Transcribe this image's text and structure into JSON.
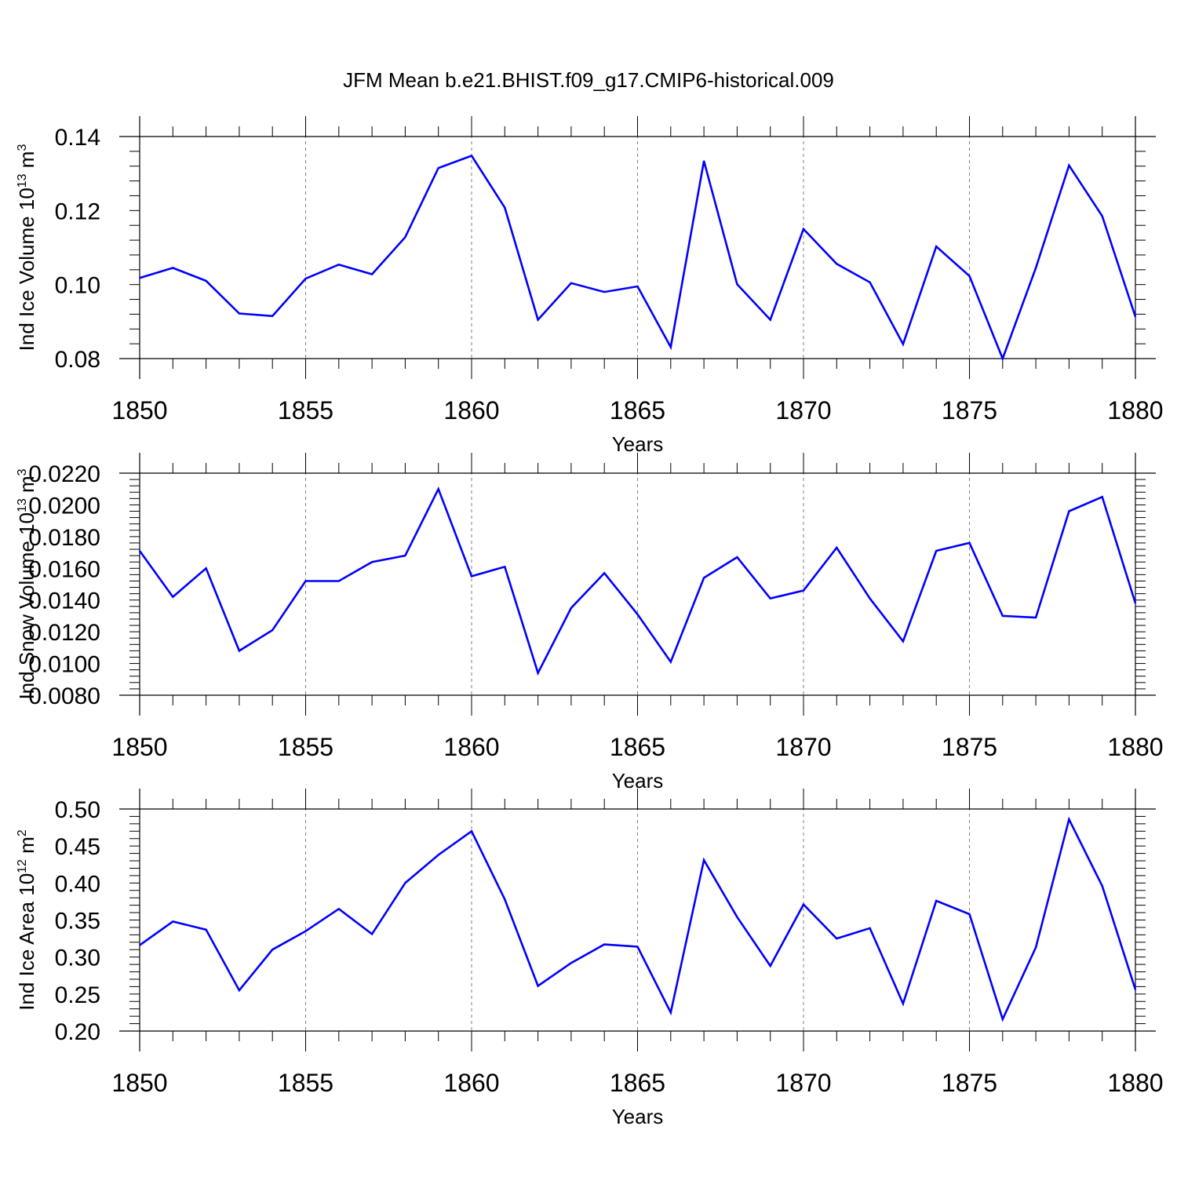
{
  "title": "JFM Mean b.e21.BHIST.f09_g17.CMIP6-historical.009",
  "colors": {
    "line": "#0000ff",
    "axis": "#000000",
    "grid": "#7f7f7f"
  },
  "chart_data": [
    {
      "type": "line",
      "panel": "top",
      "ylabel_prefix": "Ind Ice Volume 10",
      "ylabel_exp1": "13",
      "ylabel_unit": " m",
      "ylabel_exp2": "3",
      "xlabel": "Years",
      "xlim": [
        1850,
        1880
      ],
      "ylim": [
        0.08,
        0.14
      ],
      "xticks": [
        "1850",
        "1855",
        "1860",
        "1865",
        "1870",
        "1875",
        "1880"
      ],
      "yticks": [
        {
          "value": 0.08,
          "label": "0.08"
        },
        {
          "value": 0.1,
          "label": "0.10"
        },
        {
          "value": 0.12,
          "label": "0.12"
        },
        {
          "value": 0.14,
          "label": "0.14"
        }
      ],
      "grid_x": [
        1855,
        1860,
        1865,
        1870,
        1875
      ],
      "x": [
        1850,
        1851,
        1852,
        1853,
        1854,
        1855,
        1856,
        1857,
        1858,
        1859,
        1860,
        1861,
        1862,
        1863,
        1864,
        1865,
        1866,
        1867,
        1868,
        1869,
        1870,
        1871,
        1872,
        1873,
        1874,
        1875,
        1876,
        1877,
        1878,
        1879,
        1880
      ],
      "values": [
        0.1018,
        0.1045,
        0.101,
        0.0922,
        0.0915,
        0.1016,
        0.1054,
        0.1028,
        0.1128,
        0.1315,
        0.1348,
        0.1208,
        0.0905,
        0.1004,
        0.098,
        0.0995,
        0.0831,
        0.1334,
        0.1001,
        0.0905,
        0.115,
        0.1056,
        0.1006,
        0.0839,
        0.1103,
        0.1023,
        0.08,
        0.1045,
        0.1322,
        0.1185,
        0.0913
      ]
    },
    {
      "type": "line",
      "panel": "middle",
      "ylabel_prefix": "Ind Snow Volume 10",
      "ylabel_exp1": "13",
      "ylabel_unit": " m",
      "ylabel_exp2": "3",
      "xlabel": "Years",
      "xlim": [
        1850,
        1880
      ],
      "ylim": [
        0.008,
        0.022
      ],
      "xticks": [
        "1850",
        "1855",
        "1860",
        "1865",
        "1870",
        "1875",
        "1880"
      ],
      "yticks": [
        {
          "value": 0.008,
          "label": "0.0080"
        },
        {
          "value": 0.01,
          "label": "0.0100"
        },
        {
          "value": 0.012,
          "label": "0.0120"
        },
        {
          "value": 0.014,
          "label": "0.0140"
        },
        {
          "value": 0.016,
          "label": "0.0160"
        },
        {
          "value": 0.018,
          "label": "0.0180"
        },
        {
          "value": 0.02,
          "label": "0.0200"
        },
        {
          "value": 0.022,
          "label": "0.0220"
        }
      ],
      "grid_x": [
        1855,
        1860,
        1865,
        1870,
        1875
      ],
      "x": [
        1850,
        1851,
        1852,
        1853,
        1854,
        1855,
        1856,
        1857,
        1858,
        1859,
        1860,
        1861,
        1862,
        1863,
        1864,
        1865,
        1866,
        1867,
        1868,
        1869,
        1870,
        1871,
        1872,
        1873,
        1874,
        1875,
        1876,
        1877,
        1878,
        1879,
        1880
      ],
      "values": [
        0.0171,
        0.0142,
        0.016,
        0.0108,
        0.0121,
        0.0152,
        0.0152,
        0.0164,
        0.0168,
        0.021,
        0.0155,
        0.0161,
        0.0094,
        0.0135,
        0.0157,
        0.0131,
        0.0101,
        0.0154,
        0.0167,
        0.0141,
        0.0146,
        0.0173,
        0.0141,
        0.0114,
        0.0171,
        0.0176,
        0.013,
        0.0129,
        0.0196,
        0.0205,
        0.0138
      ]
    },
    {
      "type": "line",
      "panel": "bottom",
      "ylabel_prefix": "Ind Ice Area 10",
      "ylabel_exp1": "12",
      "ylabel_unit": " m",
      "ylabel_exp2": "2",
      "xlabel": "Years",
      "xlim": [
        1850,
        1880
      ],
      "ylim": [
        0.2,
        0.5
      ],
      "xticks": [
        "1850",
        "1855",
        "1860",
        "1865",
        "1870",
        "1875",
        "1880"
      ],
      "yticks": [
        {
          "value": 0.2,
          "label": "0.20"
        },
        {
          "value": 0.25,
          "label": "0.25"
        },
        {
          "value": 0.3,
          "label": "0.30"
        },
        {
          "value": 0.35,
          "label": "0.35"
        },
        {
          "value": 0.4,
          "label": "0.40"
        },
        {
          "value": 0.45,
          "label": "0.45"
        },
        {
          "value": 0.5,
          "label": "0.50"
        }
      ],
      "grid_x": [
        1855,
        1860,
        1865,
        1870,
        1875
      ],
      "x": [
        1850,
        1851,
        1852,
        1853,
        1854,
        1855,
        1856,
        1857,
        1858,
        1859,
        1860,
        1861,
        1862,
        1863,
        1864,
        1865,
        1866,
        1867,
        1868,
        1869,
        1870,
        1871,
        1872,
        1873,
        1874,
        1875,
        1876,
        1877,
        1878,
        1879,
        1880
      ],
      "values": [
        0.316,
        0.348,
        0.337,
        0.255,
        0.31,
        0.335,
        0.365,
        0.331,
        0.4,
        0.438,
        0.47,
        0.378,
        0.261,
        0.292,
        0.317,
        0.314,
        0.225,
        0.431,
        0.354,
        0.288,
        0.371,
        0.325,
        0.339,
        0.237,
        0.376,
        0.358,
        0.216,
        0.313,
        0.486,
        0.396,
        0.256
      ]
    }
  ]
}
